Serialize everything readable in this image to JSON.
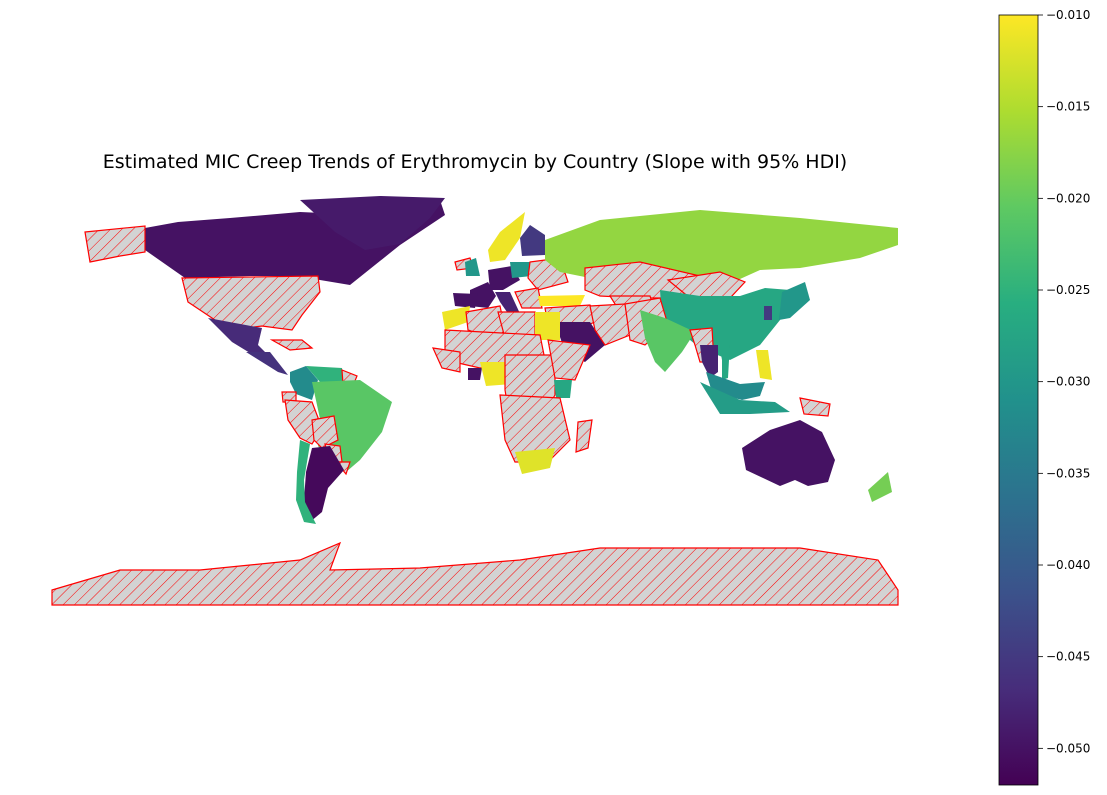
{
  "title": "Estimated MIC Creep Trends of Erythromycin by Country (Slope with 95% HDI)",
  "colorbar": {
    "min": -0.052,
    "max": -0.01,
    "ticks": [
      -0.01,
      -0.015,
      -0.02,
      -0.025,
      -0.03,
      -0.035,
      -0.04,
      -0.045,
      -0.05
    ],
    "tick_labels": [
      "−0.010",
      "−0.015",
      "−0.020",
      "−0.025",
      "−0.030",
      "−0.035",
      "−0.040",
      "−0.045",
      "−0.050"
    ],
    "colormap": "viridis"
  },
  "legend_styles": {
    "no_data_fill": "#d3d3d3",
    "no_data_edge": "#ff0000"
  },
  "chart_data": {
    "type": "choropleth",
    "title": "Estimated MIC Creep Trends of Erythromycin by Country (Slope with 95% HDI)",
    "value_range": [
      -0.052,
      -0.01
    ],
    "colormap": "viridis",
    "regions": [
      {
        "name": "Canada",
        "value": -0.05
      },
      {
        "name": "Greenland",
        "value": -0.049
      },
      {
        "name": "Alaska (US)",
        "value": null
      },
      {
        "name": "United States",
        "value": null
      },
      {
        "name": "Mexico",
        "value": -0.047
      },
      {
        "name": "Central America",
        "value": -0.046
      },
      {
        "name": "Cuba",
        "value": null
      },
      {
        "name": "Colombia",
        "value": -0.032
      },
      {
        "name": "Venezuela",
        "value": -0.025
      },
      {
        "name": "Guianas",
        "value": null
      },
      {
        "name": "Ecuador",
        "value": null
      },
      {
        "name": "Peru",
        "value": null
      },
      {
        "name": "Brazil",
        "value": -0.021
      },
      {
        "name": "Bolivia",
        "value": null
      },
      {
        "name": "Paraguay",
        "value": null
      },
      {
        "name": "Uruguay",
        "value": null
      },
      {
        "name": "Argentina",
        "value": -0.051
      },
      {
        "name": "Chile",
        "value": -0.025
      },
      {
        "name": "Antarctica",
        "value": null
      },
      {
        "name": "Iceland",
        "value": null
      },
      {
        "name": "Norway / Sweden",
        "value": -0.011
      },
      {
        "name": "Finland",
        "value": -0.045
      },
      {
        "name": "United Kingdom",
        "value": -0.03
      },
      {
        "name": "France",
        "value": -0.05
      },
      {
        "name": "Spain / Portugal",
        "value": -0.05
      },
      {
        "name": "Germany / Central Europe",
        "value": -0.05
      },
      {
        "name": "Italy",
        "value": -0.048
      },
      {
        "name": "Poland",
        "value": -0.03
      },
      {
        "name": "Ukraine / Belarus",
        "value": null
      },
      {
        "name": "Balkans",
        "value": null
      },
      {
        "name": "Turkey",
        "value": -0.01
      },
      {
        "name": "Russia",
        "value": -0.017
      },
      {
        "name": "Kazakhstan",
        "value": null
      },
      {
        "name": "Central Asia",
        "value": null
      },
      {
        "name": "Mongolia",
        "value": null
      },
      {
        "name": "China",
        "value": -0.027
      },
      {
        "name": "Korea",
        "value": -0.045
      },
      {
        "name": "Japan",
        "value": -0.03
      },
      {
        "name": "Middle East",
        "value": null
      },
      {
        "name": "Saudi Arabia",
        "value": -0.05
      },
      {
        "name": "Iran",
        "value": null
      },
      {
        "name": "Afghanistan / Pakistan",
        "value": null
      },
      {
        "name": "India",
        "value": -0.021
      },
      {
        "name": "Myanmar",
        "value": null
      },
      {
        "name": "Thailand",
        "value": -0.048
      },
      {
        "name": "Vietnam",
        "value": -0.027
      },
      {
        "name": "Philippines",
        "value": -0.011
      },
      {
        "name": "Malaysia",
        "value": -0.032
      },
      {
        "name": "Indonesia",
        "value": -0.029
      },
      {
        "name": "Papua New Guinea",
        "value": null
      },
      {
        "name": "Australia",
        "value": -0.05
      },
      {
        "name": "New Zealand",
        "value": -0.019
      },
      {
        "name": "Morocco",
        "value": -0.011
      },
      {
        "name": "Algeria",
        "value": null
      },
      {
        "name": "Libya",
        "value": null
      },
      {
        "name": "Egypt",
        "value": -0.011
      },
      {
        "name": "Sahel",
        "value": null
      },
      {
        "name": "West Africa",
        "value": null
      },
      {
        "name": "Ghana",
        "value": -0.05
      },
      {
        "name": "Cameroon",
        "value": -0.011
      },
      {
        "name": "Central Africa",
        "value": null
      },
      {
        "name": "Ethiopia / Horn",
        "value": null
      },
      {
        "name": "Kenya",
        "value": -0.027
      },
      {
        "name": "East / Southern Africa",
        "value": null
      },
      {
        "name": "South Africa",
        "value": -0.012
      },
      {
        "name": "Madagascar",
        "value": null
      }
    ]
  }
}
